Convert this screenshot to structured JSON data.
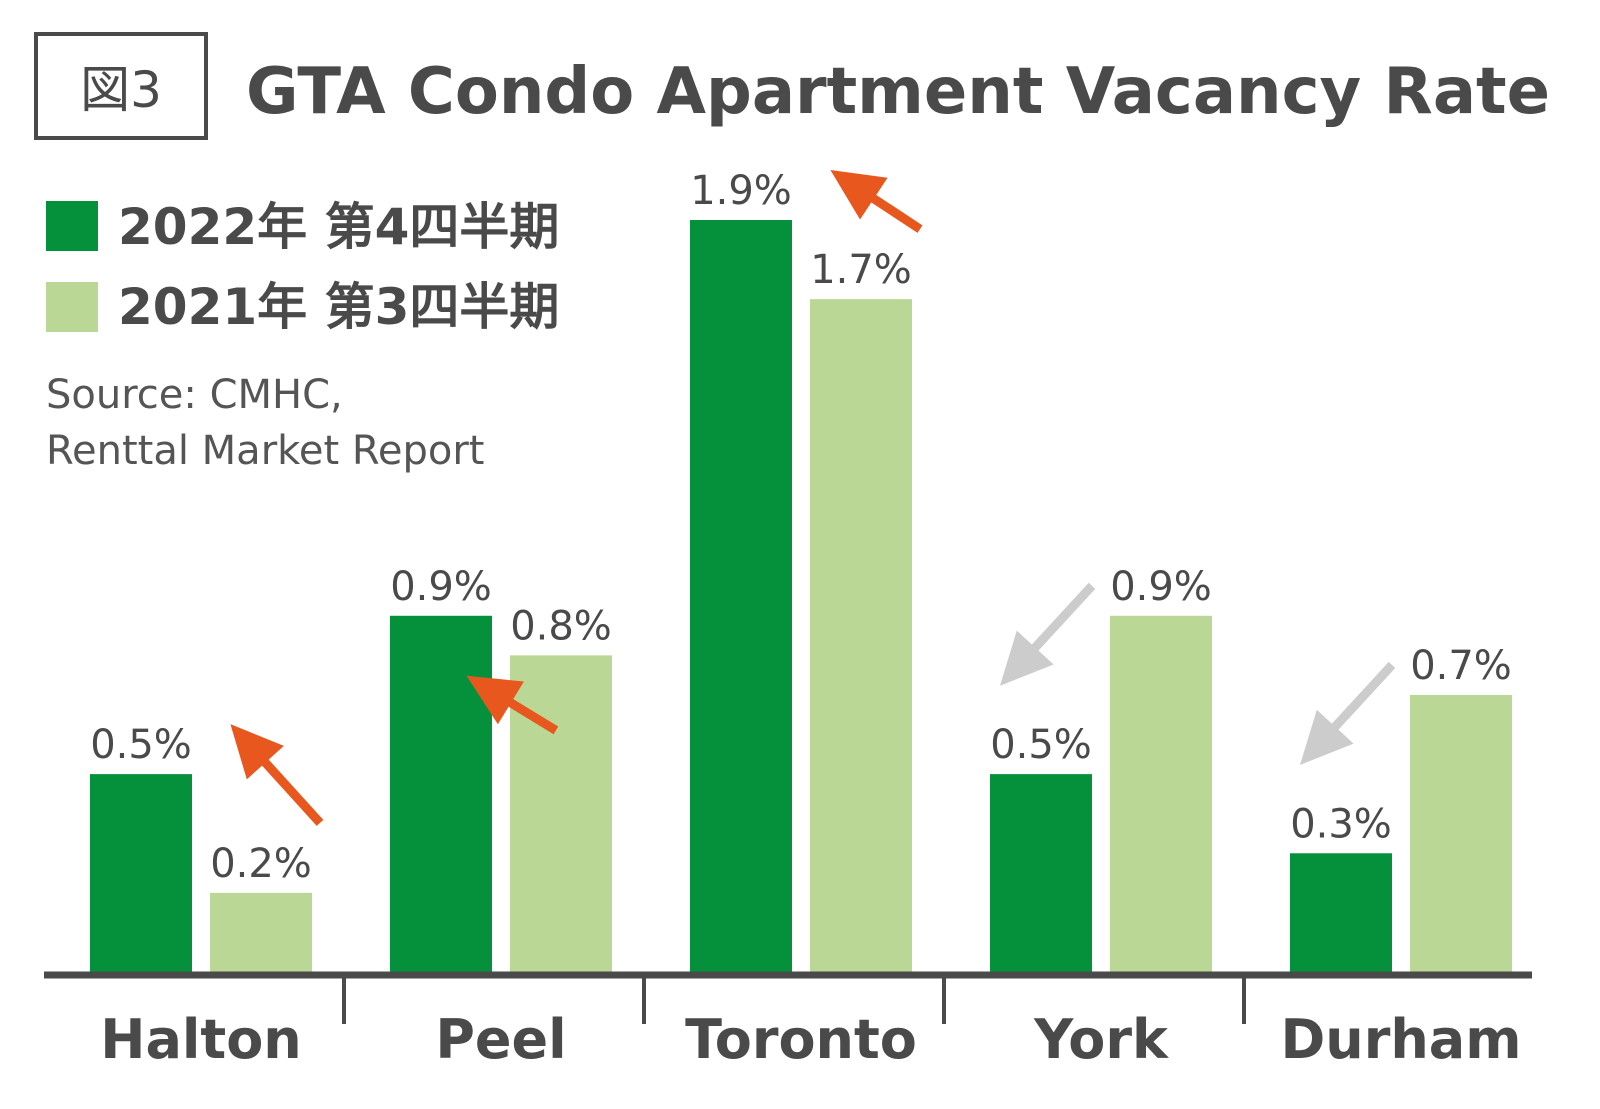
{
  "figure_badge": "図3",
  "chart_data": {
    "type": "bar",
    "title": "GTA Condo Apartment Vacancy Rate",
    "categories": [
      "Halton",
      "Peel",
      "Toronto",
      "York",
      "Durham"
    ],
    "series": [
      {
        "name": "2022年 第4四半期",
        "values": [
          0.5,
          0.9,
          1.9,
          0.5,
          0.3
        ],
        "labels": [
          "0.5%",
          "0.9%",
          "1.9%",
          "0.5%",
          "0.3%"
        ],
        "color": "#05913c"
      },
      {
        "name": "2021年 第3四半期",
        "values": [
          0.2,
          0.8,
          1.7,
          0.9,
          0.7
        ],
        "labels": [
          "0.2%",
          "0.8%",
          "1.7%",
          "0.9%",
          "0.7%"
        ],
        "color": "#bad796"
      }
    ],
    "ylim": [
      0,
      1.9
    ],
    "grid": false,
    "legend": "top-left",
    "trend_arrows": [
      "up",
      "up",
      "up",
      "down",
      "down"
    ],
    "arrow_colors": {
      "up": "#e8571e",
      "down": "#cccccc"
    },
    "axis_color": "#4a4a4a"
  },
  "source": {
    "line1": "Source: CMHC,",
    "line2": "Renttal Market Report"
  }
}
